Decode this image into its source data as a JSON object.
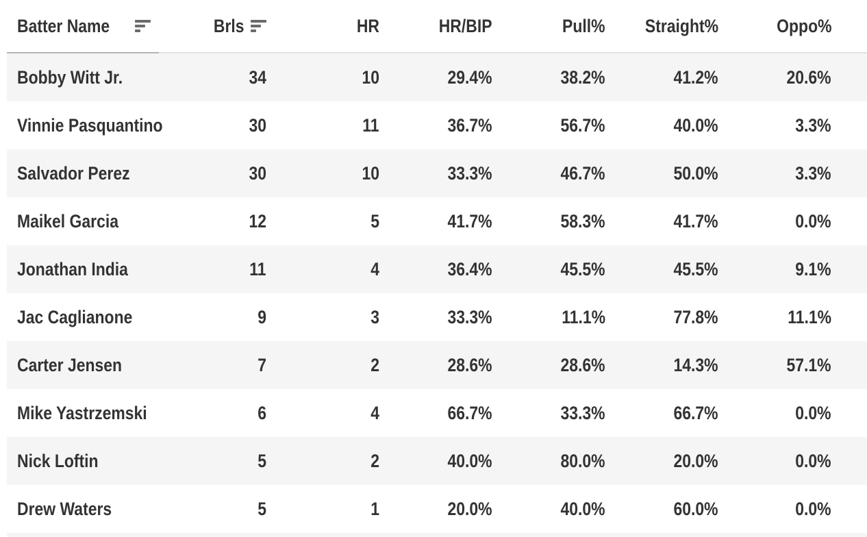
{
  "table": {
    "columns": [
      {
        "label": "Batter Name",
        "align": "left",
        "has_sort_icon": true
      },
      {
        "label": "Brls",
        "align": "right",
        "has_sort_icon": true
      },
      {
        "label": "HR",
        "align": "right",
        "has_sort_icon": false
      },
      {
        "label": "HR/BIP",
        "align": "right",
        "has_sort_icon": false
      },
      {
        "label": "Pull%",
        "align": "right",
        "has_sort_icon": false
      },
      {
        "label": "Straight%",
        "align": "right",
        "has_sort_icon": false
      },
      {
        "label": "Oppo%",
        "align": "right",
        "has_sort_icon": false
      }
    ],
    "rows": [
      {
        "name": "Bobby Witt Jr.",
        "brls": "34",
        "hr": "10",
        "hr_bip": "29.4%",
        "pull_pct": "38.2%",
        "straight_pct": "41.2%",
        "oppo_pct": "20.6%"
      },
      {
        "name": "Vinnie Pasquantino",
        "brls": "30",
        "hr": "11",
        "hr_bip": "36.7%",
        "pull_pct": "56.7%",
        "straight_pct": "40.0%",
        "oppo_pct": "3.3%"
      },
      {
        "name": "Salvador Perez",
        "brls": "30",
        "hr": "10",
        "hr_bip": "33.3%",
        "pull_pct": "46.7%",
        "straight_pct": "50.0%",
        "oppo_pct": "3.3%"
      },
      {
        "name": "Maikel Garcia",
        "brls": "12",
        "hr": "5",
        "hr_bip": "41.7%",
        "pull_pct": "58.3%",
        "straight_pct": "41.7%",
        "oppo_pct": "0.0%"
      },
      {
        "name": "Jonathan India",
        "brls": "11",
        "hr": "4",
        "hr_bip": "36.4%",
        "pull_pct": "45.5%",
        "straight_pct": "45.5%",
        "oppo_pct": "9.1%"
      },
      {
        "name": "Jac Caglianone",
        "brls": "9",
        "hr": "3",
        "hr_bip": "33.3%",
        "pull_pct": "11.1%",
        "straight_pct": "77.8%",
        "oppo_pct": "11.1%"
      },
      {
        "name": "Carter Jensen",
        "brls": "7",
        "hr": "2",
        "hr_bip": "28.6%",
        "pull_pct": "28.6%",
        "straight_pct": "14.3%",
        "oppo_pct": "57.1%"
      },
      {
        "name": "Mike Yastrzemski",
        "brls": "6",
        "hr": "4",
        "hr_bip": "66.7%",
        "pull_pct": "33.3%",
        "straight_pct": "66.7%",
        "oppo_pct": "0.0%"
      },
      {
        "name": "Nick Loftin",
        "brls": "5",
        "hr": "2",
        "hr_bip": "40.0%",
        "pull_pct": "80.0%",
        "straight_pct": "20.0%",
        "oppo_pct": "0.0%"
      },
      {
        "name": "Drew Waters",
        "brls": "5",
        "hr": "1",
        "hr_bip": "20.0%",
        "pull_pct": "40.0%",
        "straight_pct": "60.0%",
        "oppo_pct": "0.0%"
      }
    ],
    "partial_row_visible_at_bottom": true,
    "colors": {
      "text": "#333333",
      "row_stripe": "#f5f5f5",
      "row_plain": "#ffffff",
      "sort_icon": "#6b6b6b",
      "active_column_underline": "#b3b3b3",
      "header_underline": "#e2e2e2"
    }
  }
}
